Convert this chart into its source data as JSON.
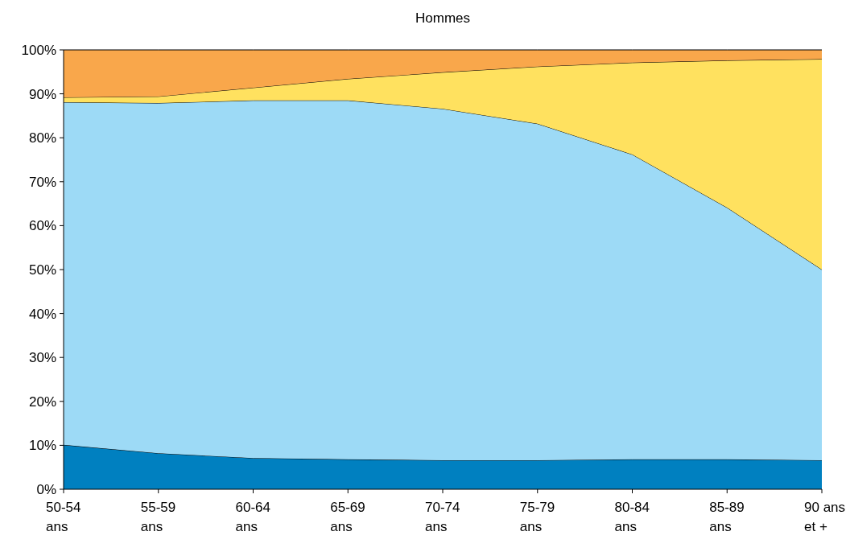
{
  "chart_data": {
    "type": "area",
    "title": "Hommes",
    "stacked": true,
    "categories": [
      "50-54\nans",
      "55-59\nans",
      "60-64\nans",
      "65-69\nans",
      "70-74\nans",
      "75-79\nans",
      "80-84\nans",
      "85-89\nans",
      "90 ans\net +"
    ],
    "series": [
      {
        "color": "#0080c0",
        "values": [
          10.1,
          8.2,
          7.1,
          6.8,
          6.6,
          6.6,
          6.8,
          6.8,
          6.6
        ]
      },
      {
        "color": "#9ddaf6",
        "values": [
          78.0,
          79.7,
          81.4,
          81.7,
          80.0,
          76.6,
          69.4,
          57.3,
          43.4
        ]
      },
      {
        "color": "#ffe15f",
        "values": [
          1.1,
          1.5,
          2.9,
          4.9,
          8.3,
          13.0,
          20.9,
          33.5,
          47.9
        ]
      },
      {
        "color": "#f9a74b",
        "values": [
          10.8,
          10.6,
          8.6,
          6.6,
          5.1,
          3.8,
          2.9,
          2.4,
          2.1
        ]
      }
    ],
    "ylim": [
      0,
      100
    ],
    "yticks": [
      {
        "value": 0,
        "label": "0%"
      },
      {
        "value": 10,
        "label": "10%"
      },
      {
        "value": 20,
        "label": "20%"
      },
      {
        "value": 30,
        "label": "30%"
      },
      {
        "value": 40,
        "label": "40%"
      },
      {
        "value": 50,
        "label": "50%"
      },
      {
        "value": 60,
        "label": "60%"
      },
      {
        "value": 70,
        "label": "70%"
      },
      {
        "value": 80,
        "label": "80%"
      },
      {
        "value": 90,
        "label": "90%"
      },
      {
        "value": 100,
        "label": "100%"
      }
    ],
    "grid": false
  }
}
